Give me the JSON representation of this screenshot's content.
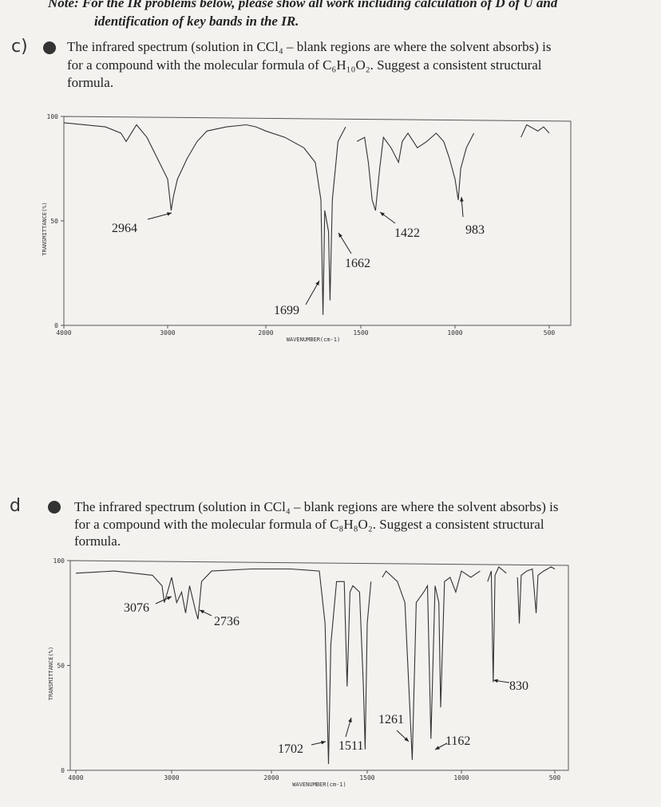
{
  "note": {
    "lines": [
      "Note: For the IR problems below, please show all work including calculation of D of U and",
      "identification of key bands in the IR."
    ]
  },
  "questions": [
    {
      "marker": "c)",
      "lines": [
        "The infrared spectrum (solution in CCl₄ – blank regions are where the solvent absorbs) is",
        "for a compound with the molecular formula of C₆H₁₀O₂.  Suggest a consistent structural",
        "formula."
      ],
      "chart": {
        "type": "line",
        "xlabel": "WAVENUMBER(cm-1)",
        "ylabel": "TRANSMITTANCE(%)",
        "xlim": [
          4000,
          500
        ],
        "ylim": [
          0,
          100
        ],
        "xticks": [
          4000,
          3000,
          2000,
          1500,
          1000,
          500
        ],
        "yticks": [
          0,
          50,
          100
        ],
        "x": [
          4000,
          3600,
          3450,
          3400,
          3300,
          3200,
          3100,
          3000,
          2964,
          2940,
          2900,
          2800,
          2700,
          2600,
          2400,
          2200,
          2100,
          2000,
          1900,
          1800,
          1740,
          1710,
          1699,
          1690,
          1670,
          1662,
          1650,
          1620,
          1580,
          1550,
          1520,
          1480,
          1460,
          1440,
          1422,
          1400,
          1380,
          1340,
          1300,
          1280,
          1250,
          1200,
          1150,
          1100,
          1060,
          1030,
          1000,
          983,
          970,
          940,
          900,
          800,
          650,
          620,
          560,
          530,
          500
        ],
        "values": [
          97,
          95,
          92,
          88,
          96,
          90,
          80,
          70,
          55,
          62,
          70,
          80,
          88,
          93,
          95,
          96,
          95,
          93,
          90,
          85,
          78,
          60,
          5,
          55,
          45,
          12,
          60,
          88,
          95,
          null,
          88,
          90,
          78,
          60,
          55,
          75,
          90,
          85,
          78,
          88,
          92,
          85,
          88,
          92,
          88,
          80,
          70,
          60,
          75,
          85,
          92,
          null,
          90,
          96,
          93,
          95,
          92
        ],
        "annotations": [
          "2964",
          "1699",
          "1662",
          "1422",
          "983"
        ]
      }
    },
    {
      "marker": "d",
      "lines": [
        "The infrared spectrum (solution in CCl₄ – blank regions are where the solvent absorbs) is",
        "for a compound with the molecular formula of C₈H₈O₂.  Suggest a consistent structural",
        "formula."
      ],
      "chart": {
        "type": "line",
        "xlabel": "WAVENUMBER(cm-1)",
        "ylabel": "TRANSMITTANCE(%)",
        "xlim": [
          4000,
          500
        ],
        "ylim": [
          0,
          100
        ],
        "xticks": [
          4000,
          3000,
          2000,
          1500,
          1000,
          500
        ],
        "yticks": [
          0,
          50,
          100
        ],
        "x": [
          4000,
          3600,
          3200,
          3100,
          3076,
          3050,
          3000,
          2950,
          2900,
          2860,
          2820,
          2760,
          2736,
          2700,
          2600,
          2200,
          2000,
          1900,
          1750,
          1720,
          1702,
          1690,
          1660,
          1620,
          1605,
          1590,
          1575,
          1540,
          1520,
          1511,
          1500,
          1480,
          1450,
          1420,
          1400,
          1340,
          1300,
          1261,
          1240,
          1200,
          1180,
          1162,
          1140,
          1120,
          1110,
          1090,
          1060,
          1030,
          1000,
          950,
          900,
          880,
          860,
          840,
          830,
          820,
          800,
          760,
          730,
          700,
          690,
          680,
          650,
          620,
          600,
          590,
          560,
          520,
          500
        ],
        "values": [
          94,
          95,
          93,
          88,
          80,
          84,
          92,
          80,
          85,
          75,
          88,
          76,
          72,
          90,
          95,
          96,
          96,
          96,
          95,
          70,
          3,
          60,
          90,
          90,
          40,
          85,
          88,
          85,
          40,
          10,
          70,
          90,
          null,
          92,
          95,
          90,
          80,
          5,
          80,
          85,
          88,
          15,
          88,
          80,
          30,
          90,
          92,
          85,
          95,
          92,
          95,
          null,
          90,
          95,
          42,
          93,
          97,
          94,
          null,
          92,
          70,
          93,
          95,
          96,
          75,
          93,
          95,
          97,
          96
        ],
        "annotations": [
          "3076",
          "2736",
          "1702",
          "1511",
          "1261",
          "1162",
          "830"
        ]
      }
    }
  ]
}
